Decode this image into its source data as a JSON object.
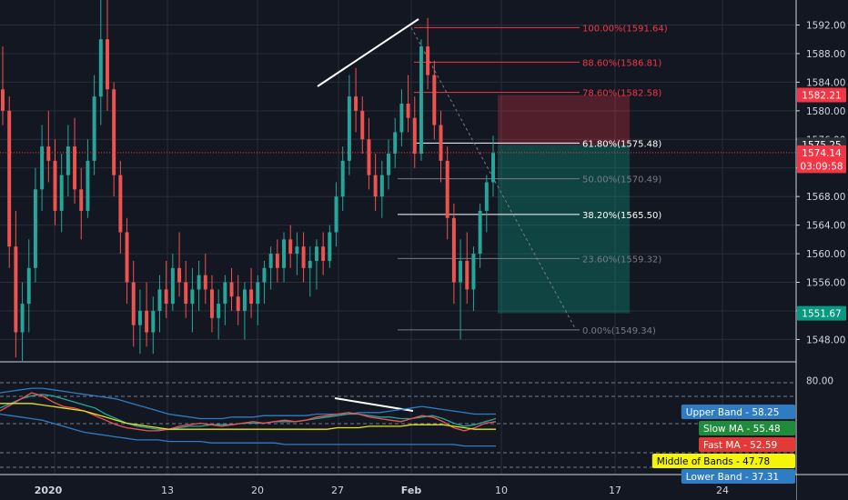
{
  "chart_data": [
    {
      "type": "candlestick",
      "title": "",
      "ylim": [
        1545,
        1595.5
      ],
      "y_ticks": [
        1548,
        1552,
        1556,
        1560,
        1564,
        1568,
        1572,
        1576,
        1580,
        1584,
        1588,
        1592
      ],
      "y_tick_labels": [
        "1548.00",
        "1552.00",
        "1556.00",
        "1560.00",
        "1564.00",
        "1568.00",
        "1572.00",
        "1576.00",
        "1580.00",
        "1584.00",
        "1588.00",
        "1592.00"
      ],
      "x_tick_labels": [
        "2020",
        "13",
        "20",
        "27",
        "Feb",
        "10",
        "17",
        "24"
      ],
      "grid": true,
      "colors": {
        "up": "#26a69a",
        "down": "#ef5350",
        "background": "#131722",
        "grid": "#2a2e39"
      },
      "fibonacci": [
        {
          "label": "100.00%(1591.64)",
          "level": 1591.64,
          "color": "#f23645"
        },
        {
          "label": "88.60%(1586.81)",
          "level": 1586.81,
          "color": "#f23645"
        },
        {
          "label": "78.60%(1582.58)",
          "level": 1582.58,
          "color": "#f23645"
        },
        {
          "label": "61.80%(1575.48)",
          "level": 1575.48,
          "color": "#ffffff"
        },
        {
          "label": "50.00%(1570.49)",
          "level": 1570.49,
          "color": "#787b86"
        },
        {
          "label": "38.20%(1565.50)",
          "level": 1565.5,
          "color": "#ffffff"
        },
        {
          "label": "23.60%(1559.32)",
          "level": 1559.32,
          "color": "#787b86"
        },
        {
          "label": "0.00%(1549.34)",
          "level": 1549.34,
          "color": "#787b86"
        }
      ],
      "position": {
        "stop": 1582.21,
        "entry": 1575.25,
        "target": 1551.67
      },
      "price_badges": [
        {
          "text": "1582.21",
          "value": 1582.21,
          "color": "#f23645"
        },
        {
          "text": "1575.25",
          "value": 1575.25,
          "color": "#2a2e39"
        },
        {
          "text": "1574.14",
          "value": 1574.14,
          "color": "#f23645"
        },
        {
          "text": "03:09:58",
          "value": 1572.3,
          "color": "#f23645"
        },
        {
          "text": "1551.67",
          "value": 1551.67,
          "color": "#089981"
        }
      ],
      "candles": [
        [
          1583.0,
          1589.0,
          1578.0,
          1580.0
        ],
        [
          1580.0,
          1582.0,
          1558.0,
          1561.0
        ],
        [
          1561.0,
          1566.0,
          1545.5,
          1549.0
        ],
        [
          1549.0,
          1556.0,
          1545.0,
          1553.0
        ],
        [
          1553.0,
          1562.0,
          1549.0,
          1558.0
        ],
        [
          1558.0,
          1572.0,
          1556.0,
          1569.0
        ],
        [
          1569.0,
          1578.0,
          1566.0,
          1575.0
        ],
        [
          1575.0,
          1580.0,
          1570.0,
          1573.0
        ],
        [
          1573.0,
          1576.0,
          1564.0,
          1566.0
        ],
        [
          1566.0,
          1574.0,
          1563.0,
          1571.0
        ],
        [
          1571.0,
          1578.0,
          1568.0,
          1575.0
        ],
        [
          1575.0,
          1579.0,
          1567.0,
          1569.0
        ],
        [
          1569.0,
          1572.0,
          1562.0,
          1566.0
        ],
        [
          1566.0,
          1576.0,
          1565.0,
          1573.0
        ],
        [
          1573.0,
          1585.0,
          1571.0,
          1582.0
        ],
        [
          1582.0,
          1596.0,
          1578.0,
          1590.0
        ],
        [
          1590.0,
          1596.0,
          1580.0,
          1583.0
        ],
        [
          1583.0,
          1584.0,
          1568.0,
          1571.0
        ],
        [
          1571.0,
          1573.0,
          1560.0,
          1563.0
        ],
        [
          1563.0,
          1565.0,
          1553.0,
          1556.0
        ],
        [
          1556.0,
          1559.0,
          1547.0,
          1550.0
        ],
        [
          1550.0,
          1555.0,
          1546.0,
          1552.0
        ],
        [
          1552.0,
          1556.0,
          1547.0,
          1549.0
        ],
        [
          1549.0,
          1554.0,
          1546.0,
          1552.0
        ],
        [
          1552.0,
          1557.0,
          1549.0,
          1555.0
        ],
        [
          1555.0,
          1559.0,
          1551.0,
          1553.0
        ],
        [
          1553.0,
          1560.0,
          1552.0,
          1558.0
        ],
        [
          1558.0,
          1563.0,
          1554.0,
          1556.0
        ],
        [
          1556.0,
          1559.0,
          1551.0,
          1553.0
        ],
        [
          1553.0,
          1558.0,
          1549.0,
          1555.0
        ],
        [
          1555.0,
          1559.0,
          1552.0,
          1557.0
        ],
        [
          1557.0,
          1560.0,
          1553.0,
          1555.0
        ],
        [
          1555.0,
          1557.0,
          1549.0,
          1551.0
        ],
        [
          1551.0,
          1555.0,
          1548.0,
          1553.0
        ],
        [
          1553.0,
          1557.0,
          1550.0,
          1556.0
        ],
        [
          1556.0,
          1558.0,
          1552.0,
          1554.0
        ],
        [
          1554.0,
          1557.0,
          1550.0,
          1552.0
        ],
        [
          1552.0,
          1556.0,
          1548.0,
          1555.0
        ],
        [
          1555.0,
          1558.0,
          1551.0,
          1553.0
        ],
        [
          1553.0,
          1557.0,
          1550.0,
          1556.0
        ],
        [
          1556.0,
          1559.0,
          1553.0,
          1558.0
        ],
        [
          1558.0,
          1561.0,
          1555.0,
          1560.0
        ],
        [
          1560.0,
          1562.0,
          1556.0,
          1558.0
        ],
        [
          1558.0,
          1563.0,
          1556.0,
          1562.0
        ],
        [
          1562.0,
          1564.0,
          1558.0,
          1560.0
        ],
        [
          1560.0,
          1563.0,
          1557.0,
          1561.0
        ],
        [
          1561.0,
          1563.0,
          1556.0,
          1558.0
        ],
        [
          1558.0,
          1561.0,
          1554.0,
          1559.0
        ],
        [
          1559.0,
          1562.0,
          1555.0,
          1561.0
        ],
        [
          1561.0,
          1563.0,
          1557.0,
          1559.0
        ],
        [
          1559.0,
          1564.0,
          1558.0,
          1563.0
        ],
        [
          1563.0,
          1570.0,
          1561.0,
          1568.0
        ],
        [
          1568.0,
          1575.0,
          1566.0,
          1573.0
        ],
        [
          1573.0,
          1585.0,
          1571.0,
          1582.0
        ],
        [
          1582.0,
          1586.0,
          1577.0,
          1580.0
        ],
        [
          1580.0,
          1582.0,
          1574.0,
          1576.0
        ],
        [
          1576.0,
          1579.0,
          1569.0,
          1571.0
        ],
        [
          1571.0,
          1574.0,
          1566.0,
          1568.0
        ],
        [
          1568.0,
          1573.0,
          1565.0,
          1571.0
        ],
        [
          1571.0,
          1576.0,
          1569.0,
          1574.0
        ],
        [
          1574.0,
          1579.0,
          1572.0,
          1577.0
        ],
        [
          1577.0,
          1583.0,
          1575.0,
          1581.0
        ],
        [
          1581.0,
          1585.0,
          1577.0,
          1579.0
        ],
        [
          1579.0,
          1582.0,
          1572.0,
          1574.0
        ],
        [
          1574.0,
          1590.0,
          1573.0,
          1589.0
        ],
        [
          1589.0,
          1593.0,
          1583.0,
          1585.0
        ],
        [
          1585.0,
          1587.0,
          1576.0,
          1578.0
        ],
        [
          1578.0,
          1580.0,
          1570.0,
          1573.0
        ],
        [
          1573.0,
          1575.0,
          1562.0,
          1565.0
        ],
        [
          1565.0,
          1567.0,
          1553.0,
          1556.0
        ],
        [
          1556.0,
          1562.0,
          1548.0,
          1559.0
        ],
        [
          1559.0,
          1563.0,
          1553.0,
          1555.0
        ],
        [
          1555.0,
          1561.0,
          1552.0,
          1560.0
        ],
        [
          1560.0,
          1567.0,
          1558.0,
          1566.0
        ],
        [
          1566.0,
          1571.0,
          1563.0,
          1570.0
        ],
        [
          1570.0,
          1576.5,
          1568.0,
          1574.1
        ]
      ]
    },
    {
      "type": "line",
      "title": "",
      "ylim": [
        20,
        90
      ],
      "y_ticks": [
        80
      ],
      "y_tick_labels": [
        "80.00"
      ],
      "series": [
        {
          "name": "Upper Band",
          "value": 58.25,
          "color": "#2e7cc4",
          "bg": "#2e7cc4",
          "fg": "#ffffff",
          "values": [
            72,
            73,
            74,
            75,
            75,
            74,
            73,
            72,
            71,
            70,
            69,
            68,
            66,
            64,
            62,
            60,
            58,
            57,
            56,
            55,
            55,
            55,
            56,
            56,
            56,
            57,
            57,
            57,
            57,
            57,
            58,
            58,
            58,
            58,
            59,
            59,
            59,
            60,
            61,
            62,
            63,
            62,
            61,
            60,
            59,
            58,
            58,
            58
          ]
        },
        {
          "name": "Slow MA",
          "value": 55.48,
          "color": "#26a69a",
          "bg": "#1e8c3a",
          "fg": "#ffffff",
          "values": [
            62,
            65,
            68,
            70,
            71,
            70,
            68,
            66,
            64,
            62,
            58,
            55,
            52,
            50,
            49,
            48,
            48,
            49,
            50,
            50,
            51,
            51,
            51,
            52,
            52,
            52,
            53,
            53,
            53,
            54,
            55,
            56,
            57,
            58,
            58,
            57,
            56,
            56,
            55,
            55,
            56,
            57,
            55,
            52,
            50,
            51,
            53,
            55
          ]
        },
        {
          "name": "Fast MA",
          "value": 52.59,
          "color": "#ef5350",
          "bg": "#e53935",
          "fg": "#ffffff",
          "values": [
            60,
            64,
            68,
            72,
            70,
            66,
            63,
            62,
            60,
            57,
            54,
            51,
            49,
            48,
            47,
            47,
            48,
            50,
            51,
            52,
            51,
            50,
            51,
            52,
            53,
            52,
            53,
            54,
            53,
            54,
            56,
            57,
            58,
            59,
            58,
            56,
            55,
            54,
            53,
            55,
            57,
            56,
            53,
            49,
            47,
            49,
            52,
            53
          ]
        },
        {
          "name": "Middle of Bands",
          "value": 47.78,
          "color": "#e3e31c",
          "bg": "#f5f50a",
          "fg": "#000000",
          "values": [
            65,
            65,
            65,
            65,
            64,
            63,
            62,
            61,
            60,
            58,
            56,
            54,
            52,
            51,
            50,
            49,
            48,
            48,
            48,
            48,
            48,
            48,
            48,
            48,
            48,
            48,
            48,
            48,
            48,
            48,
            48,
            48,
            49,
            49,
            49,
            50,
            50,
            50,
            50,
            51,
            51,
            51,
            51,
            50,
            49,
            48,
            48,
            48
          ]
        },
        {
          "name": "Lower Band",
          "value": 37.31,
          "color": "#2e7cc4",
          "bg": "#2e7cc4",
          "fg": "#ffffff",
          "values": [
            58,
            57,
            56,
            55,
            54,
            52,
            50,
            48,
            46,
            45,
            44,
            43,
            42,
            41,
            41,
            41,
            40,
            40,
            40,
            40,
            39,
            39,
            39,
            39,
            39,
            39,
            39,
            38,
            38,
            38,
            38,
            38,
            38,
            38,
            38,
            38,
            38,
            38,
            38,
            38,
            38,
            38,
            38,
            38,
            37,
            37,
            37,
            37
          ]
        }
      ]
    }
  ]
}
